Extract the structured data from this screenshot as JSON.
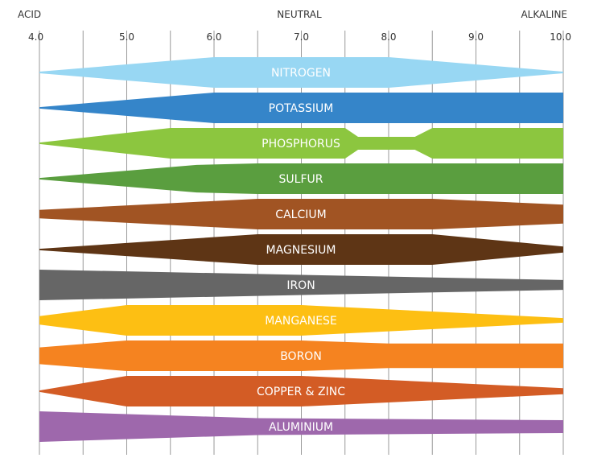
{
  "chart_data": {
    "type": "area",
    "title": "",
    "xlabel": "",
    "ylabel": "",
    "header_labels": {
      "left": "ACID",
      "center": "NEUTRAL",
      "right": "ALKALINE"
    },
    "xlim": [
      4.0,
      10.0
    ],
    "x_ticks": [
      "4.0",
      "5.0",
      "6.0",
      "7.0",
      "8.0",
      "9.0",
      "10.0"
    ],
    "minor_gridlines": true,
    "series": [
      {
        "name": "NITROGEN",
        "color": "#98d7f3",
        "profile": [
          [
            4.0,
            0.05
          ],
          [
            6.0,
            1.0
          ],
          [
            8.0,
            1.0
          ],
          [
            10.0,
            0.05
          ]
        ]
      },
      {
        "name": "POTASSIUM",
        "color": "#3585c9",
        "profile": [
          [
            4.0,
            0.05
          ],
          [
            6.0,
            1.0
          ],
          [
            10.0,
            1.0
          ]
        ]
      },
      {
        "name": "PHOSPHORUS",
        "color": "#8cc63f",
        "profile": [
          [
            4.0,
            0.05
          ],
          [
            5.5,
            1.0
          ],
          [
            7.5,
            1.0
          ],
          [
            7.65,
            0.42
          ],
          [
            8.3,
            0.42
          ],
          [
            8.5,
            1.0
          ],
          [
            10.0,
            1.0
          ]
        ]
      },
      {
        "name": "SULFUR",
        "color": "#5a9e3f",
        "profile": [
          [
            4.0,
            0.05
          ],
          [
            5.8,
            0.9
          ],
          [
            6.5,
            1.0
          ],
          [
            10.0,
            1.0
          ]
        ]
      },
      {
        "name": "CALCIUM",
        "color": "#a15423",
        "profile": [
          [
            4.0,
            0.28
          ],
          [
            6.5,
            1.0
          ],
          [
            8.5,
            1.0
          ],
          [
            10.0,
            0.62
          ]
        ]
      },
      {
        "name": "MAGNESIUM",
        "color": "#5e3515",
        "profile": [
          [
            4.0,
            0.05
          ],
          [
            6.5,
            1.0
          ],
          [
            8.5,
            1.0
          ],
          [
            10.0,
            0.2
          ]
        ]
      },
      {
        "name": "IRON",
        "color": "#666666",
        "profile": [
          [
            4.0,
            1.0
          ],
          [
            10.0,
            0.32
          ]
        ]
      },
      {
        "name": "MANGANESE",
        "color": "#fdbf13",
        "profile": [
          [
            4.0,
            0.28
          ],
          [
            5.0,
            1.0
          ],
          [
            7.0,
            1.0
          ],
          [
            10.0,
            0.15
          ]
        ]
      },
      {
        "name": "BORON",
        "color": "#f58320",
        "profile": [
          [
            4.0,
            0.55
          ],
          [
            5.0,
            1.0
          ],
          [
            7.0,
            1.0
          ],
          [
            8.0,
            0.8
          ],
          [
            10.0,
            0.8
          ]
        ]
      },
      {
        "name": "COPPER & ZINC",
        "color": "#d35c25",
        "profile": [
          [
            4.0,
            0.05
          ],
          [
            5.0,
            1.0
          ],
          [
            7.0,
            1.0
          ],
          [
            10.0,
            0.2
          ]
        ]
      },
      {
        "name": "ALUMINIUM",
        "color": "#9e68ac",
        "profile": [
          [
            4.0,
            1.0
          ],
          [
            6.5,
            0.55
          ],
          [
            10.0,
            0.42
          ]
        ]
      }
    ]
  }
}
